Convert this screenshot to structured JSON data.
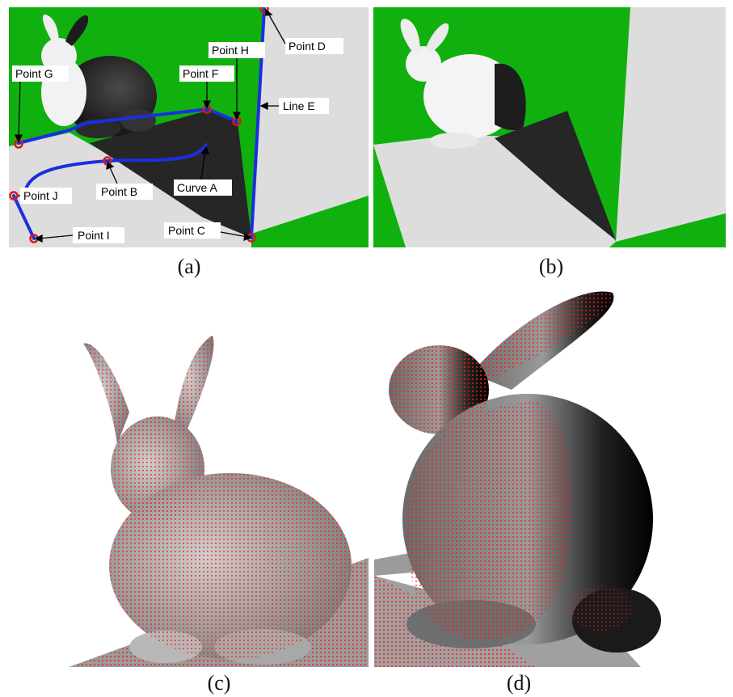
{
  "captions": {
    "a": "(a)",
    "b": "(b)",
    "c": "(c)",
    "d": "(d)"
  },
  "panel_a": {
    "labels": {
      "point_a_curve": "Curve A",
      "point_b": "Point B",
      "point_c": "Point C",
      "point_d": "Point D",
      "line_e": "Line E",
      "point_f": "Point F",
      "point_g": "Point G",
      "point_h": "Point H",
      "point_i": "Point I",
      "point_j": "Point J"
    }
  },
  "colors": {
    "green": "#10b10f",
    "floor_light": "#dddddd",
    "floor_dark": "#262626",
    "annotation_line": "#1a2fe0",
    "marker": "#d81a1a",
    "point_cloud": "#ff1a1a"
  }
}
